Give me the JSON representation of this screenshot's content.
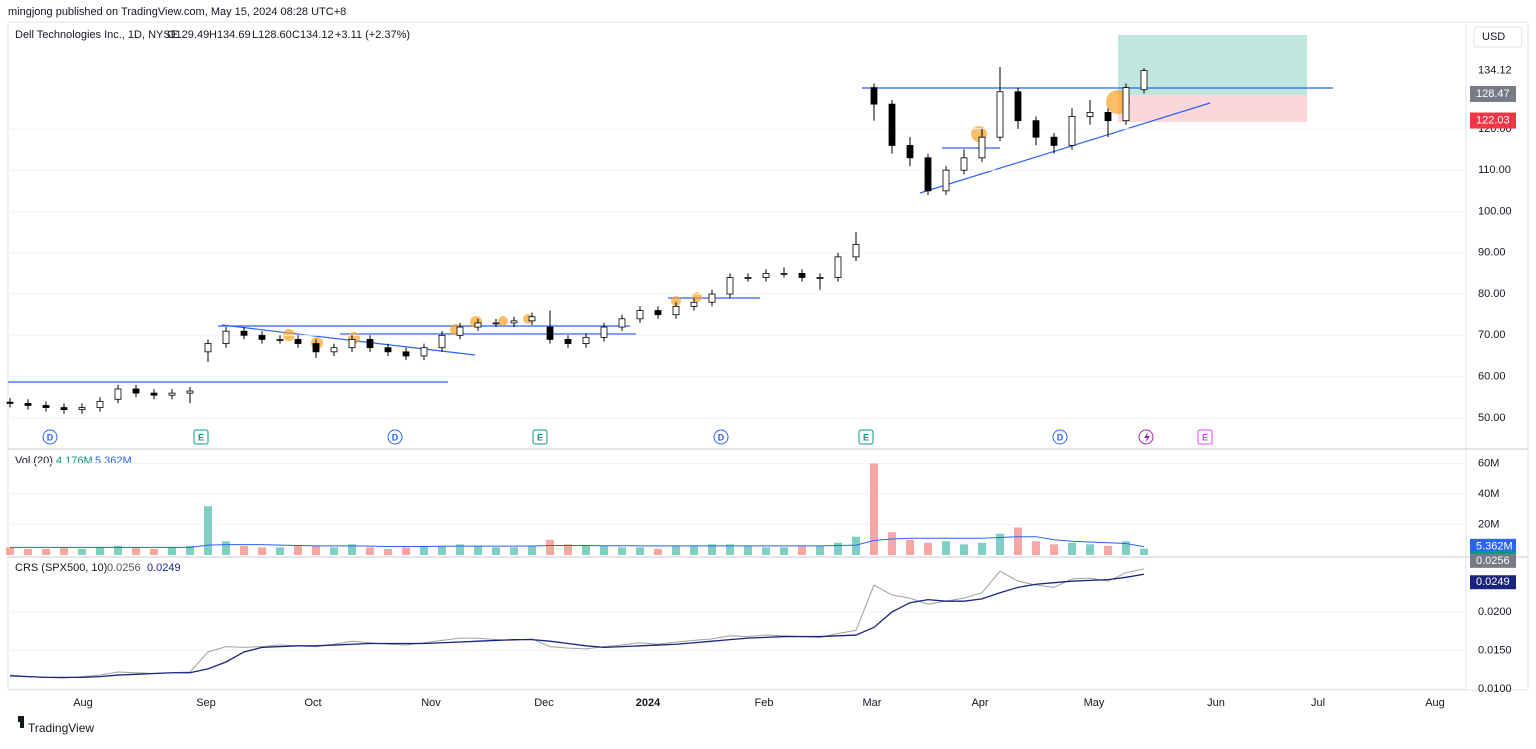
{
  "header": {
    "published": "mingjong published on TradingView.com, May 15, 2024 08:28 UTC+8",
    "brand": "TradingView"
  },
  "chart_data": [
    {
      "type": "candlestick",
      "title": "Dell Technologies Inc., 1D, NYSE",
      "ohlc_labels": [
        "O129.49",
        "H134.69",
        "L128.60",
        "C134.12",
        "+3.11 (+2.37%)"
      ],
      "currency": "USD",
      "up_color": "#ffffff",
      "down_color": "#000000",
      "open": [
        53.8,
        53.5,
        53,
        52.5,
        52,
        52.5,
        54.5,
        57,
        56,
        55.5,
        56,
        66,
        68,
        71,
        70,
        69,
        69,
        68,
        66,
        67,
        69,
        67,
        66,
        65,
        67,
        70,
        72,
        73,
        73,
        73.5,
        72,
        69,
        68,
        69.5,
        72,
        74,
        76,
        75,
        77,
        78,
        80,
        84,
        84,
        85,
        85,
        84,
        84,
        89,
        130,
        126,
        116,
        113,
        105,
        110,
        113,
        118,
        129,
        122,
        118,
        116,
        123,
        124,
        122,
        129.49
      ],
      "high": [
        54.8,
        54.5,
        54,
        53.5,
        53.5,
        55,
        58,
        58,
        57,
        57,
        57.5,
        69,
        72,
        72,
        71,
        70,
        70,
        69,
        68,
        70,
        70,
        68,
        67,
        68,
        71,
        73,
        74,
        74,
        74.5,
        75.5,
        76,
        70,
        70.5,
        73,
        75,
        77,
        77,
        78,
        79,
        81,
        85,
        85,
        86,
        86.5,
        86,
        85,
        90,
        95,
        131,
        127,
        118,
        114,
        111,
        115,
        120,
        135,
        130,
        123,
        119,
        125,
        127,
        125,
        131,
        134.69
      ],
      "low": [
        52.5,
        52,
        51.5,
        51,
        51,
        51.5,
        53.5,
        55,
        54.5,
        54.5,
        53.5,
        63.5,
        67,
        69,
        68,
        68,
        67,
        64.5,
        65,
        66,
        66,
        65,
        64,
        64,
        66,
        69,
        71,
        72,
        72,
        72.5,
        68,
        67,
        67,
        68.5,
        71,
        73,
        74,
        74,
        76,
        77,
        79,
        83,
        83,
        84,
        83,
        81,
        83,
        88,
        122,
        114,
        111,
        104,
        104,
        109,
        112,
        117,
        120,
        116,
        114,
        115,
        121,
        118,
        121,
        128.6
      ],
      "close": [
        53.5,
        53,
        52.5,
        52,
        52.5,
        54,
        57,
        56,
        55.5,
        56,
        56.5,
        68,
        71,
        70,
        69,
        69,
        68,
        66,
        67,
        69,
        67,
        66,
        65,
        67,
        70,
        72,
        73,
        73,
        73.5,
        74.5,
        69,
        68,
        69.5,
        72,
        74,
        76,
        75,
        77,
        78,
        80,
        84,
        84,
        85,
        85,
        84,
        84,
        89,
        92,
        126,
        116,
        113,
        105,
        110,
        113,
        118,
        129,
        122,
        118,
        116,
        123,
        124,
        122,
        130,
        134.12
      ],
      "ylim": [
        42.7,
        145.9
      ],
      "yticks": [
        {
          "value": 50,
          "label": "50.00"
        },
        {
          "value": 60,
          "label": "60.00"
        },
        {
          "value": 70,
          "label": "70.00"
        },
        {
          "value": 80,
          "label": "80.00"
        },
        {
          "value": 90,
          "label": "90.00"
        },
        {
          "value": 100,
          "label": "100.00"
        },
        {
          "value": 110,
          "label": "110.00"
        },
        {
          "value": 120,
          "label": "120.00"
        }
      ],
      "price_labels": [
        {
          "value": 128.47,
          "label": "128.47",
          "color": "#787b86"
        },
        {
          "value": 122.03,
          "label": "122.03",
          "color": "#f23645"
        }
      ],
      "events": [
        "D",
        "E",
        "D",
        "E",
        "D",
        "E",
        "D",
        "E"
      ],
      "xlabels": [
        "Aug",
        "Sep",
        "Oct",
        "Nov",
        "Dec",
        "2024",
        "Feb",
        "Mar",
        "Apr",
        "May",
        "Jun",
        "Jul",
        "Aug"
      ]
    },
    {
      "type": "bar",
      "title": "Vol (20)",
      "legend_values": [
        "4.176M",
        "5.362M"
      ],
      "up_color": "#7fcfc4",
      "down_color": "#f7a8a6",
      "ma_color": "#2962ff",
      "values": [
        5,
        4,
        4,
        5,
        4,
        5,
        6,
        5,
        4,
        5,
        6,
        32,
        9,
        6,
        5,
        5,
        6,
        6,
        5,
        7,
        5,
        4,
        5,
        6,
        6,
        7,
        6,
        5,
        5,
        6,
        10,
        7,
        6,
        6,
        5,
        5,
        4,
        6,
        6,
        7,
        7,
        6,
        5,
        5,
        6,
        6,
        8,
        12,
        60,
        15,
        10,
        8,
        9,
        7,
        8,
        14,
        18,
        9,
        7,
        8,
        7,
        6,
        9,
        4.176
      ],
      "ma": [
        5,
        5,
        5,
        5,
        5,
        5,
        5,
        5,
        5,
        5,
        5,
        6.5,
        6.8,
        6.8,
        6.8,
        6.5,
        6.2,
        6,
        6,
        6,
        5.8,
        5.6,
        5.6,
        5.6,
        5.7,
        5.8,
        5.8,
        5.8,
        5.8,
        5.9,
        6.2,
        6.2,
        6.2,
        6.1,
        6.1,
        6,
        6,
        6,
        6,
        6,
        6,
        6,
        6,
        6,
        6,
        6,
        6.2,
        6.5,
        9.5,
        10.5,
        11,
        11,
        11,
        11,
        11,
        11.5,
        12,
        12,
        10,
        9,
        8.5,
        8,
        7.5,
        5.362
      ],
      "ylim": [
        0,
        67.5
      ],
      "yticks": [
        {
          "value": 20,
          "label": "20M"
        },
        {
          "value": 40,
          "label": "40M"
        },
        {
          "value": 60,
          "label": "60M"
        }
      ]
    },
    {
      "type": "line",
      "title": "CRS (SPX500, 10)",
      "series": [
        {
          "color": "#a0a0a0",
          "values": [
            0.0118,
            0.0116,
            0.0115,
            0.0114,
            0.0116,
            0.0118,
            0.0122,
            0.0121,
            0.012,
            0.0121,
            0.0122,
            0.0148,
            0.0155,
            0.0154,
            0.0155,
            0.0157,
            0.0156,
            0.0155,
            0.0158,
            0.0162,
            0.016,
            0.0158,
            0.0157,
            0.016,
            0.0163,
            0.0166,
            0.0166,
            0.0164,
            0.0163,
            0.0165,
            0.0155,
            0.0153,
            0.0152,
            0.0155,
            0.0157,
            0.016,
            0.0158,
            0.0161,
            0.0163,
            0.0165,
            0.0169,
            0.0168,
            0.017,
            0.0169,
            0.0168,
            0.0167,
            0.0172,
            0.0176,
            0.0235,
            0.0222,
            0.0218,
            0.021,
            0.0214,
            0.0218,
            0.0225,
            0.0253,
            0.024,
            0.0235,
            0.0232,
            0.0243,
            0.0244,
            0.024,
            0.0251,
            0.0256
          ]
        },
        {
          "color": "#1a237e",
          "values": [
            0.0117,
            0.0116,
            0.0115,
            0.0115,
            0.0115,
            0.0116,
            0.0118,
            0.0119,
            0.012,
            0.0121,
            0.0121,
            0.0126,
            0.0135,
            0.0148,
            0.0154,
            0.0155,
            0.0156,
            0.0156,
            0.0157,
            0.0158,
            0.0159,
            0.0159,
            0.0159,
            0.0159,
            0.016,
            0.0161,
            0.0162,
            0.0163,
            0.0164,
            0.0164,
            0.0162,
            0.0159,
            0.0156,
            0.0154,
            0.0155,
            0.0156,
            0.0157,
            0.0158,
            0.016,
            0.0162,
            0.0164,
            0.0166,
            0.0167,
            0.0168,
            0.0168,
            0.0168,
            0.0169,
            0.017,
            0.018,
            0.02,
            0.0212,
            0.0216,
            0.0214,
            0.0214,
            0.0217,
            0.0225,
            0.0232,
            0.0236,
            0.0238,
            0.024,
            0.0241,
            0.0242,
            0.0245,
            0.0249
          ]
        }
      ],
      "ylim": [
        0.0096,
        0.02675
      ],
      "yticks": [
        {
          "value": 0.01,
          "label": "0.0100"
        },
        {
          "value": 0.015,
          "label": "0.0150"
        },
        {
          "value": 0.02,
          "label": "0.0200"
        }
      ]
    }
  ]
}
